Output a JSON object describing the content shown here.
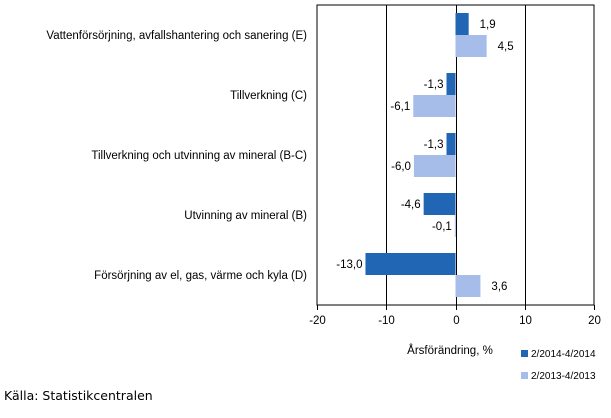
{
  "chart_data": {
    "type": "bar",
    "orientation": "horizontal",
    "categories": [
      "Vattenförsörjning, avfallshantering och sanering (E)",
      "Tillverkning (C)",
      "Tillverkning och utvinning av mineral (B-C)",
      "Utvinning av mineral  (B)",
      "Försörjning av el, gas, värme och kyla (D)"
    ],
    "series": [
      {
        "name": "2/2014-4/2014",
        "color": "#2166b5",
        "values": [
          1.9,
          -1.3,
          -1.3,
          -4.6,
          -13.0
        ]
      },
      {
        "name": "2/2013-4/2013",
        "color": "#a6bdea",
        "values": [
          4.5,
          -6.1,
          -6.0,
          -0.1,
          3.6
        ]
      }
    ],
    "value_labels": [
      [
        "1,9",
        "-1,3",
        "-1,3",
        "-4,6",
        "-13,0"
      ],
      [
        "4,5",
        "-6,1",
        "-6,0",
        "-0,1",
        "3,6"
      ]
    ],
    "xlim": [
      -20,
      20
    ],
    "xticks": [
      -20,
      -10,
      0,
      10,
      20
    ],
    "xtick_labels": [
      "-20",
      "-10",
      "0",
      "10",
      "20"
    ],
    "xlabel": "Årsförändring, %",
    "grid": "vertical lines at -10, 0, 10",
    "legend": "bottom-right"
  },
  "source": "Källa: Statistikcentralen"
}
